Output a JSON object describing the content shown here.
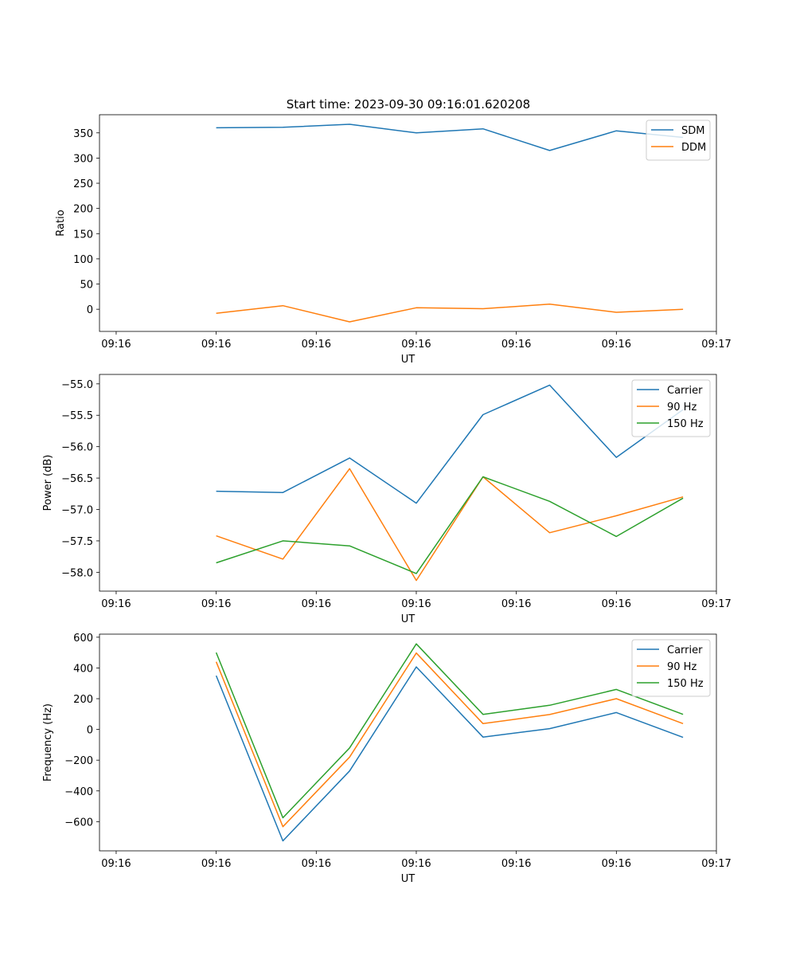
{
  "title": "Start time: 2023-09-30 09:16:01.620208",
  "colors": {
    "blue": "#1f77b4",
    "orange": "#ff7f0e",
    "green": "#2ca02c"
  },
  "chart_data": [
    {
      "type": "line",
      "xlabel": "UT",
      "ylabel": "Ratio",
      "x_tick_labels": [
        "09:16",
        "09:16",
        "09:16",
        "09:16",
        "09:16",
        "09:16",
        "09:16"
      ],
      "x_end_label": "09:17",
      "x_points": [
        1,
        2,
        3,
        4,
        5,
        6,
        7,
        8
      ],
      "xlim": [
        -0.75,
        8.5
      ],
      "ylim": [
        -44,
        386
      ],
      "y_ticks": [
        0,
        50,
        100,
        150,
        200,
        250,
        300,
        350
      ],
      "y_tick_labels": [
        "0",
        "50",
        "100",
        "150",
        "200",
        "250",
        "300",
        "350"
      ],
      "legend": "top-right",
      "series": [
        {
          "name": "SDM",
          "color": "#1f77b4",
          "values": [
            360,
            361,
            367,
            350,
            358,
            315,
            354,
            341
          ]
        },
        {
          "name": "DDM",
          "color": "#ff7f0e",
          "values": [
            -8,
            7,
            -25,
            3,
            1,
            10,
            -6,
            0
          ]
        }
      ]
    },
    {
      "type": "line",
      "xlabel": "UT",
      "ylabel": "Power (dB)",
      "x_tick_labels": [
        "09:16",
        "09:16",
        "09:16",
        "09:16",
        "09:16",
        "09:16",
        "09:16"
      ],
      "x_end_label": "09:17",
      "x_points": [
        1,
        2,
        3,
        4,
        5,
        6,
        7,
        8
      ],
      "xlim": [
        -0.75,
        8.5
      ],
      "ylim": [
        -58.3,
        -54.85
      ],
      "y_ticks": [
        -58.0,
        -57.5,
        -57.0,
        -56.5,
        -56.0,
        -55.5,
        -55.0
      ],
      "y_tick_labels": [
        "−58.0",
        "−57.5",
        "−57.0",
        "−56.5",
        "−56.0",
        "−55.5",
        "−55.0"
      ],
      "legend": "top-right",
      "series": [
        {
          "name": "Carrier",
          "color": "#1f77b4",
          "values": [
            -56.71,
            -56.73,
            -56.18,
            -56.9,
            -55.49,
            -55.02,
            -56.17,
            -55.41
          ]
        },
        {
          "name": "90 Hz",
          "color": "#ff7f0e",
          "values": [
            -57.42,
            -57.79,
            -56.35,
            -58.13,
            -56.48,
            -57.37,
            -57.1,
            -56.8
          ]
        },
        {
          "name": "150 Hz",
          "color": "#2ca02c",
          "values": [
            -57.85,
            -57.5,
            -57.58,
            -58.02,
            -56.48,
            -56.87,
            -57.43,
            -56.82
          ]
        }
      ]
    },
    {
      "type": "line",
      "xlabel": "UT",
      "ylabel": "Frequency (Hz)",
      "x_tick_labels": [
        "09:16",
        "09:16",
        "09:16",
        "09:16",
        "09:16",
        "09:16",
        "09:16"
      ],
      "x_end_label": "09:17",
      "x_points": [
        1,
        2,
        3,
        4,
        5,
        6,
        7,
        8
      ],
      "xlim": [
        -0.75,
        8.5
      ],
      "ylim": [
        -790,
        620
      ],
      "y_ticks": [
        -600,
        -400,
        -200,
        0,
        200,
        400,
        600
      ],
      "y_tick_labels": [
        "−600",
        "−400",
        "−200",
        "0",
        "200",
        "400",
        "600"
      ],
      "legend": "top-right",
      "series": [
        {
          "name": "Carrier",
          "color": "#1f77b4",
          "values": [
            350,
            -725,
            -270,
            407,
            -50,
            5,
            110,
            -52
          ]
        },
        {
          "name": "90 Hz",
          "color": "#ff7f0e",
          "values": [
            440,
            -633,
            -180,
            497,
            38,
            97,
            200,
            38
          ]
        },
        {
          "name": "150 Hz",
          "color": "#2ca02c",
          "values": [
            500,
            -575,
            -120,
            557,
            98,
            157,
            260,
            98
          ]
        }
      ]
    }
  ]
}
